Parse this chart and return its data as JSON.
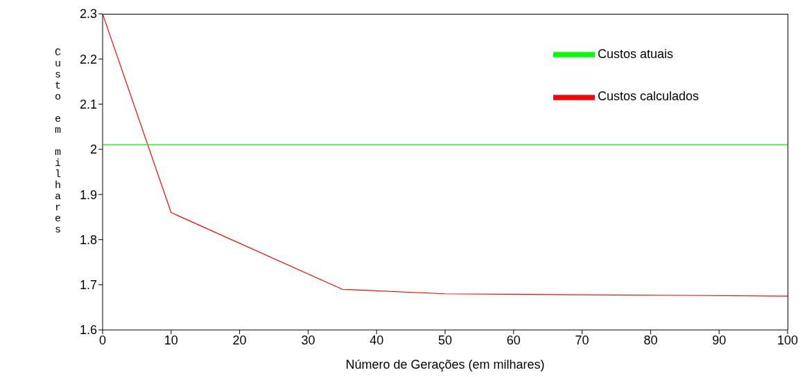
{
  "chart_data": {
    "type": "line",
    "xlabel": "Número de Gerações (em milhares)",
    "ylabel": "Custo em milhares",
    "series": [
      {
        "name": "Custos calculados",
        "color": "#ff0000",
        "x": [
          0,
          10,
          35,
          50,
          100
        ],
        "values": [
          2.3,
          1.86,
          1.69,
          1.68,
          1.675
        ]
      },
      {
        "name": "Custos atuais",
        "color": "#00ff00",
        "x": [
          0,
          100
        ],
        "values": [
          2.01,
          2.01
        ]
      }
    ],
    "xlim": [
      0,
      100
    ],
    "xticks": [
      0,
      10,
      20,
      30,
      40,
      50,
      60,
      70,
      80,
      90,
      100
    ],
    "ylim": [
      1.6,
      2.3
    ],
    "yticks": [
      1.6,
      1.7,
      1.8,
      1.9,
      2,
      2.1,
      2.2,
      2.3
    ],
    "grid": false,
    "legend": "top right",
    "marker": "none",
    "line_style": "solid"
  }
}
